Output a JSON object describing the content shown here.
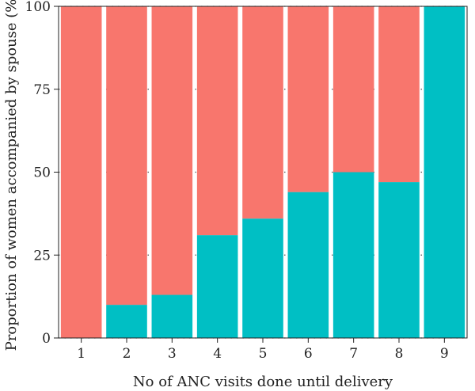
{
  "chart_data": {
    "type": "bar",
    "stacked": true,
    "title": "",
    "xlabel": "No of ANC visits done until delivery",
    "ylabel": "Proportion of women accompanied by spouse (%)",
    "categories": [
      "1",
      "2",
      "3",
      "4",
      "5",
      "6",
      "7",
      "8",
      "9"
    ],
    "ylim": [
      0,
      100
    ],
    "yticks": [
      0,
      25,
      50,
      75,
      100
    ],
    "grid": "dotted",
    "legend": "none",
    "series": [
      {
        "color": "#00BFC4",
        "values": [
          0,
          10,
          13,
          31,
          36,
          44,
          50,
          47,
          100
        ]
      },
      {
        "color": "#F8766D",
        "values": [
          100,
          90,
          87,
          69,
          64,
          56,
          50,
          53,
          0
        ]
      }
    ]
  }
}
